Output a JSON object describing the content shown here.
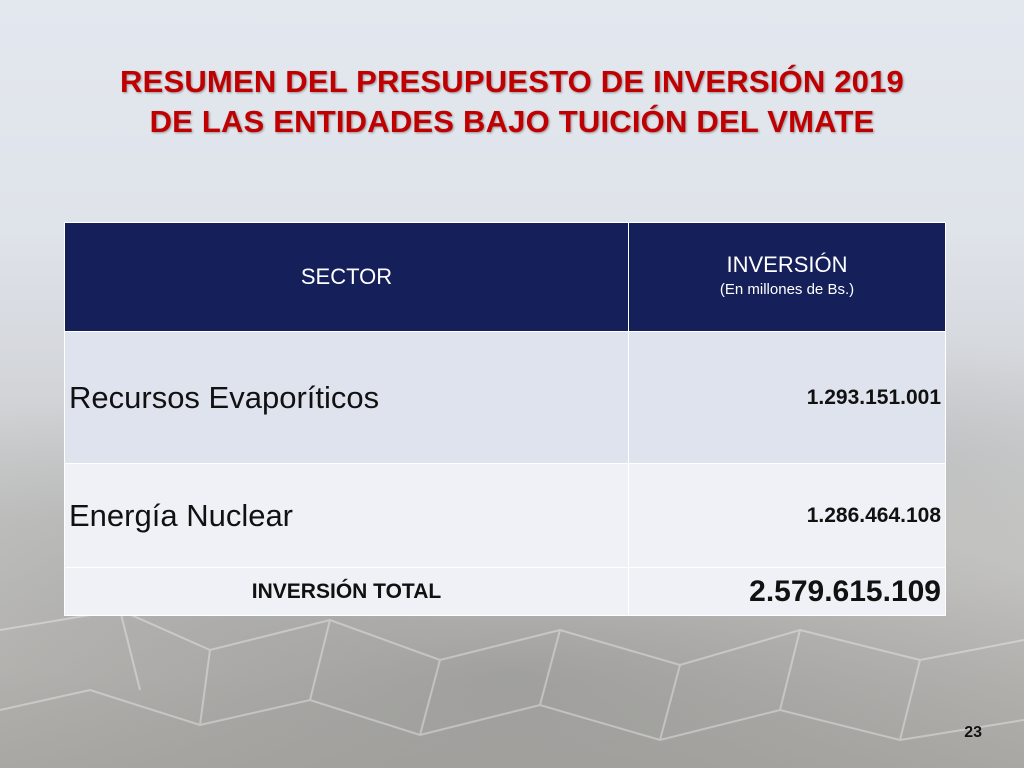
{
  "slide": {
    "title_line1": "RESUMEN DEL PRESUPUESTO DE INVERSIÓN 2019",
    "title_line2": "DE LAS ENTIDADES BAJO TUICIÓN DEL VMATE",
    "title_color": "#c00000",
    "page_number": "23"
  },
  "table": {
    "header_color": "#15205a",
    "headers": {
      "sector": "SECTOR",
      "investment": "INVERSIÓN",
      "investment_unit": "(En millones de Bs.)"
    },
    "rows": [
      {
        "sector": "Recursos Evaporíticos",
        "investment": "1.293.151.001"
      },
      {
        "sector": "Energía Nuclear",
        "investment": "1.286.464.108"
      }
    ],
    "total": {
      "label": "INVERSIÓN TOTAL",
      "value": "2.579.615.109"
    }
  }
}
